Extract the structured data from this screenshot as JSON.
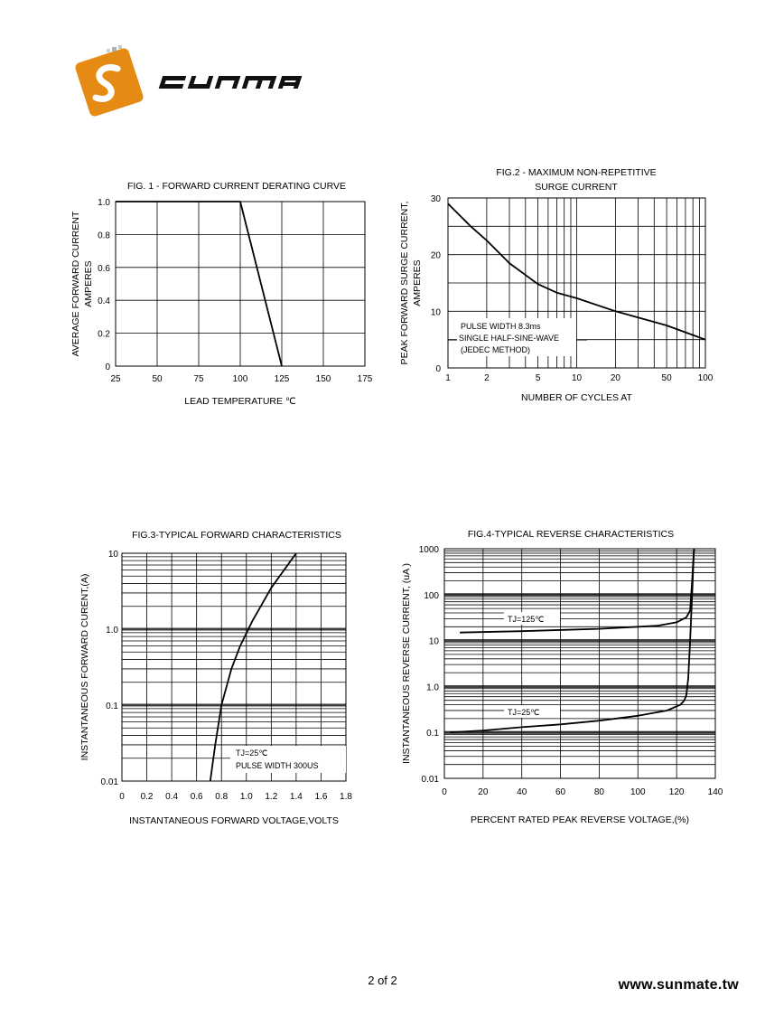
{
  "brand": {
    "name": "sunmate",
    "accent": "#e58a12"
  },
  "footer": {
    "page": "2 of 2",
    "url": "www.sunmate.tw"
  },
  "chart_data": [
    {
      "type": "line",
      "title": "FIG. 1 - FORWARD  CURRENT  DERATING  CURVE",
      "xlabel": "LEAD TEMPERATURE  ℃",
      "ylabel": [
        "AVERAGE FORWARD CURRENT",
        "AMPERES"
      ],
      "xlim": [
        25,
        175
      ],
      "ylim": [
        0,
        1.0
      ],
      "xticks": [
        "25",
        "50",
        "75",
        "100",
        "125",
        "150",
        "175"
      ],
      "yticks": [
        "0",
        "0.2",
        "0.4",
        "0.6",
        "0.8",
        "1.0"
      ],
      "grid": true,
      "series": [
        {
          "x": [
            25,
            100,
            125
          ],
          "y": [
            1.0,
            1.0,
            0
          ]
        }
      ]
    },
    {
      "type": "line",
      "title": [
        "FIG.2 - MAXIMUM  NON-REPETITIVE",
        "SURGE  CURRENT"
      ],
      "xlabel": "NUMBER OF CYCLES AT",
      "ylabel": [
        "PEAK FORWARD SURGE CURRENT,",
        "AMPERES"
      ],
      "xscale": "log",
      "xlim": [
        1,
        100
      ],
      "ylim": [
        0,
        30
      ],
      "xticks": [
        "1",
        "2",
        "5",
        "10",
        "20",
        "50",
        "100"
      ],
      "yticks": [
        "0",
        "10",
        "20",
        "30"
      ],
      "grid": true,
      "annotations": [
        "PULSE WIDTH 8.3ms",
        "SINGLE HALF-SINE-WAVE",
        "(JEDEC METHOD)"
      ],
      "series": [
        {
          "x": [
            1,
            1.5,
            2,
            3,
            5,
            7,
            10,
            20,
            50,
            100
          ],
          "y": [
            29,
            25,
            22.5,
            18.5,
            14.8,
            13.3,
            12.3,
            10,
            7.5,
            5
          ]
        }
      ]
    },
    {
      "type": "line",
      "title": "FIG.3-TYPICAL FORWARD CHARACTERISTICS",
      "xlabel": "INSTANTANEOUS FORWARD VOLTAGE,VOLTS",
      "ylabel": "INSTANTANEOUS FORWARD  CURENT,(A)",
      "yscale": "log",
      "xlim": [
        0,
        1.8
      ],
      "ylim": [
        0.01,
        10
      ],
      "xticks": [
        "0",
        "0.2",
        "0.4",
        "0.6",
        "0.8",
        "1.0",
        "1.2",
        "1.4",
        "1.6",
        "1.8"
      ],
      "yticks": [
        "0.01",
        "0.1",
        "1.0",
        "10"
      ],
      "grid": true,
      "annotations": [
        "TJ=25℃",
        "PULSE WIDTH 300US"
      ],
      "series": [
        {
          "x": [
            0.71,
            0.75,
            0.8,
            0.88,
            0.95,
            1.05,
            1.2,
            1.4
          ],
          "y": [
            0.01,
            0.03,
            0.1,
            0.3,
            0.6,
            1.3,
            3.5,
            10
          ]
        }
      ]
    },
    {
      "type": "line",
      "title": "FIG.4-TYPICAL REVERSE CHARACTERISTICS",
      "xlabel": "PERCENT RATED PEAK REVERSE VOLTAGE,(%)",
      "ylabel": "INSTANTANEOUS REVERSE CURRENT, (uA )",
      "yscale": "log",
      "xlim": [
        0,
        140
      ],
      "ylim": [
        0.01,
        1000
      ],
      "xticks": [
        "0",
        "20",
        "40",
        "60",
        "80",
        "100",
        "120",
        "140"
      ],
      "yticks": [
        "0.01",
        "0.1",
        "1.0",
        "10",
        "100",
        "1000"
      ],
      "grid": true,
      "series": [
        {
          "name": "TJ=125℃",
          "x": [
            8,
            40,
            80,
            110,
            120,
            125,
            127,
            128,
            129
          ],
          "y": [
            15,
            16,
            18,
            21,
            25,
            32,
            45,
            200,
            1000
          ]
        },
        {
          "name": "TJ=25℃",
          "x": [
            3,
            20,
            40,
            60,
            80,
            100,
            115,
            122,
            124,
            125,
            126,
            127,
            128,
            129
          ],
          "y": [
            0.1,
            0.11,
            0.13,
            0.15,
            0.18,
            0.23,
            0.3,
            0.4,
            0.5,
            0.65,
            1.5,
            10,
            100,
            1000
          ]
        }
      ]
    }
  ]
}
